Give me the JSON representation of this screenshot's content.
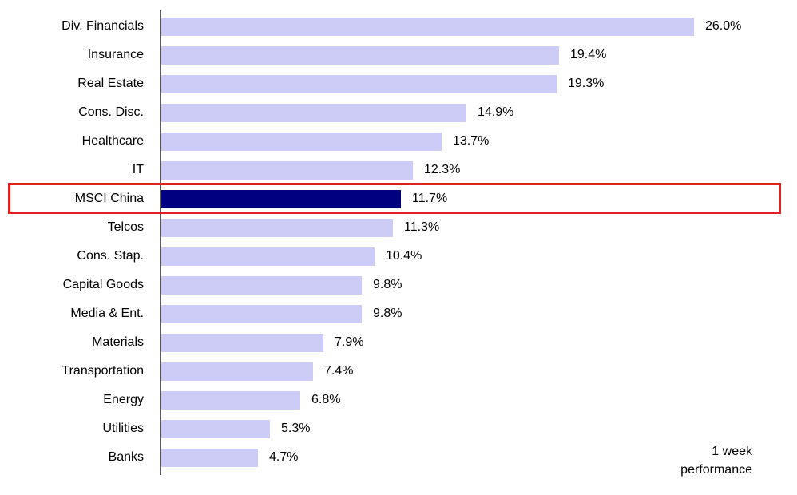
{
  "chart_data": {
    "type": "bar",
    "orientation": "horizontal",
    "title": "",
    "categories": [
      "Div. Financials",
      "Insurance",
      "Real Estate",
      "Cons. Disc.",
      "Healthcare",
      "IT",
      "MSCI China",
      "Telcos",
      "Cons. Stap.",
      "Capital Goods",
      "Media & Ent.",
      "Materials",
      "Transportation",
      "Energy",
      "Utilities",
      "Banks"
    ],
    "values": [
      26.0,
      19.4,
      19.3,
      14.9,
      13.7,
      12.3,
      11.7,
      11.3,
      10.4,
      9.8,
      9.8,
      7.9,
      7.4,
      6.8,
      5.3,
      4.7
    ],
    "value_labels": [
      "26.0%",
      "19.4%",
      "19.3%",
      "14.9%",
      "13.7%",
      "12.3%",
      "11.7%",
      "11.3%",
      "10.4%",
      "9.8%",
      "9.8%",
      "7.9%",
      "7.4%",
      "6.8%",
      "5.3%",
      "4.7%"
    ],
    "highlight": {
      "category": "MSCI China",
      "index": 6,
      "style": "red-outline-box"
    },
    "xlim": [
      0,
      31
    ],
    "grid": false,
    "legend": false,
    "annotation": {
      "lines": [
        "1 week",
        "performance"
      ],
      "position": "bottom-right"
    },
    "colors": {
      "bar": "#CCCCF7",
      "highlight_bar": "#000080",
      "highlight_box_border": "#E0201E",
      "axis_line": "#595959",
      "text": "#000000",
      "background": "#FFFFFF"
    }
  }
}
